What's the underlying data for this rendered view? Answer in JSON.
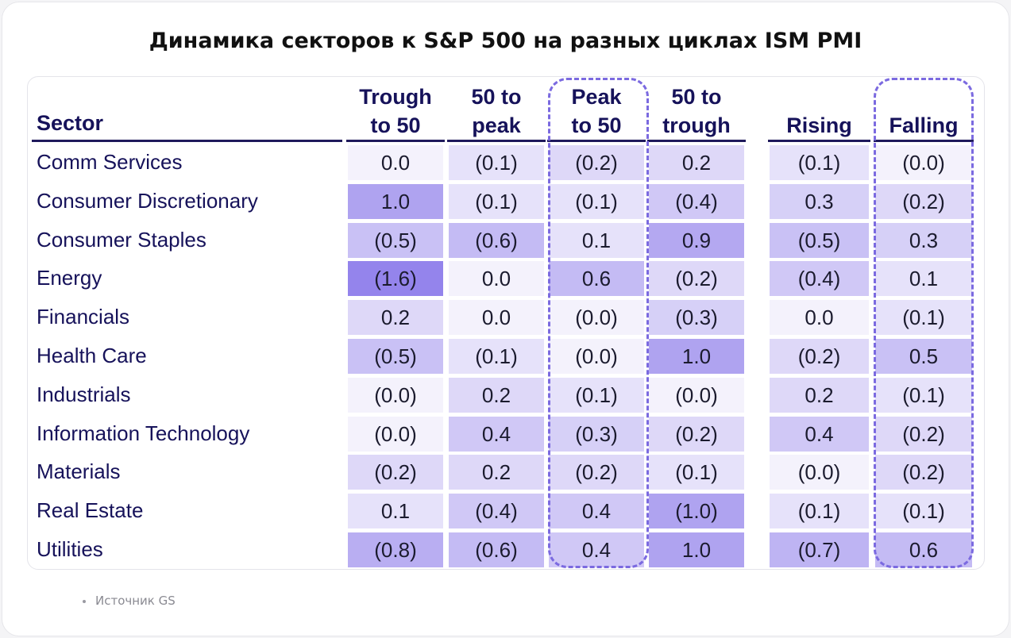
{
  "title": "Динамика секторов к S&P 500 на разных циклах ISM PMI",
  "source": "Источник GS",
  "chart_data": {
    "type": "table",
    "title": "Динамика секторов к S&P 500 на разных циклах ISM PMI",
    "row_header": "Sector",
    "columns": [
      {
        "line1": "Trough",
        "line2": "to 50"
      },
      {
        "line1": "50 to",
        "line2": "peak"
      },
      {
        "line1": "Peak",
        "line2": "to 50"
      },
      {
        "line1": "50 to",
        "line2": "trough"
      },
      {
        "line1": "",
        "line2": "Rising"
      },
      {
        "line1": "",
        "line2": "Falling"
      }
    ],
    "highlighted_columns": [
      "Peak to 50",
      "Falling"
    ],
    "rows": [
      {
        "sector": "Comm Services",
        "values": [
          0.0,
          -0.1,
          -0.2,
          0.2,
          -0.1,
          -0.0
        ],
        "labels": [
          "0.0",
          "(0.1)",
          "(0.2)",
          "0.2",
          "(0.1)",
          "(0.0)"
        ]
      },
      {
        "sector": "Consumer Discretionary",
        "values": [
          1.0,
          -0.1,
          -0.1,
          -0.4,
          0.3,
          -0.2
        ],
        "labels": [
          "1.0",
          "(0.1)",
          "(0.1)",
          "(0.4)",
          "0.3",
          "(0.2)"
        ]
      },
      {
        "sector": "Consumer Staples",
        "values": [
          -0.5,
          -0.6,
          0.1,
          0.9,
          -0.5,
          0.3
        ],
        "labels": [
          "(0.5)",
          "(0.6)",
          "0.1",
          "0.9",
          "(0.5)",
          "0.3"
        ]
      },
      {
        "sector": "Energy",
        "values": [
          -1.6,
          0.0,
          0.6,
          -0.2,
          -0.4,
          0.1
        ],
        "labels": [
          "(1.6)",
          "0.0",
          "0.6",
          "(0.2)",
          "(0.4)",
          "0.1"
        ]
      },
      {
        "sector": "Financials",
        "values": [
          0.2,
          0.0,
          -0.0,
          -0.3,
          0.0,
          -0.1
        ],
        "labels": [
          "0.2",
          "0.0",
          "(0.0)",
          "(0.3)",
          "0.0",
          "(0.1)"
        ]
      },
      {
        "sector": "Health Care",
        "values": [
          -0.5,
          -0.1,
          -0.0,
          1.0,
          -0.2,
          0.5
        ],
        "labels": [
          "(0.5)",
          "(0.1)",
          "(0.0)",
          "1.0",
          "(0.2)",
          "0.5"
        ]
      },
      {
        "sector": "Industrials",
        "values": [
          -0.0,
          0.2,
          -0.1,
          -0.0,
          0.2,
          -0.1
        ],
        "labels": [
          "(0.0)",
          "0.2",
          "(0.1)",
          "(0.0)",
          "0.2",
          "(0.1)"
        ]
      },
      {
        "sector": "Information Technology",
        "values": [
          -0.0,
          0.4,
          -0.3,
          -0.2,
          0.4,
          -0.2
        ],
        "labels": [
          "(0.0)",
          "0.4",
          "(0.3)",
          "(0.2)",
          "0.4",
          "(0.2)"
        ]
      },
      {
        "sector": "Materials",
        "values": [
          -0.2,
          0.2,
          -0.2,
          -0.1,
          -0.0,
          -0.2
        ],
        "labels": [
          "(0.2)",
          "0.2",
          "(0.2)",
          "(0.1)",
          "(0.0)",
          "(0.2)"
        ]
      },
      {
        "sector": "Real Estate",
        "values": [
          0.1,
          -0.4,
          0.4,
          -1.0,
          -0.1,
          -0.1
        ],
        "labels": [
          "0.1",
          "(0.4)",
          "0.4",
          "(1.0)",
          "(0.1)",
          "(0.1)"
        ]
      },
      {
        "sector": "Utilities",
        "values": [
          -0.8,
          -0.6,
          0.4,
          1.0,
          -0.7,
          0.6
        ],
        "labels": [
          "(0.8)",
          "(0.6)",
          "0.4",
          "1.0",
          "(0.7)",
          "0.6"
        ]
      }
    ],
    "colors": {
      "heat_low": "#f4f2fc",
      "heat_high": "#9484ec",
      "highlight_border": "#7b6ae0",
      "text": "#16125a"
    }
  }
}
